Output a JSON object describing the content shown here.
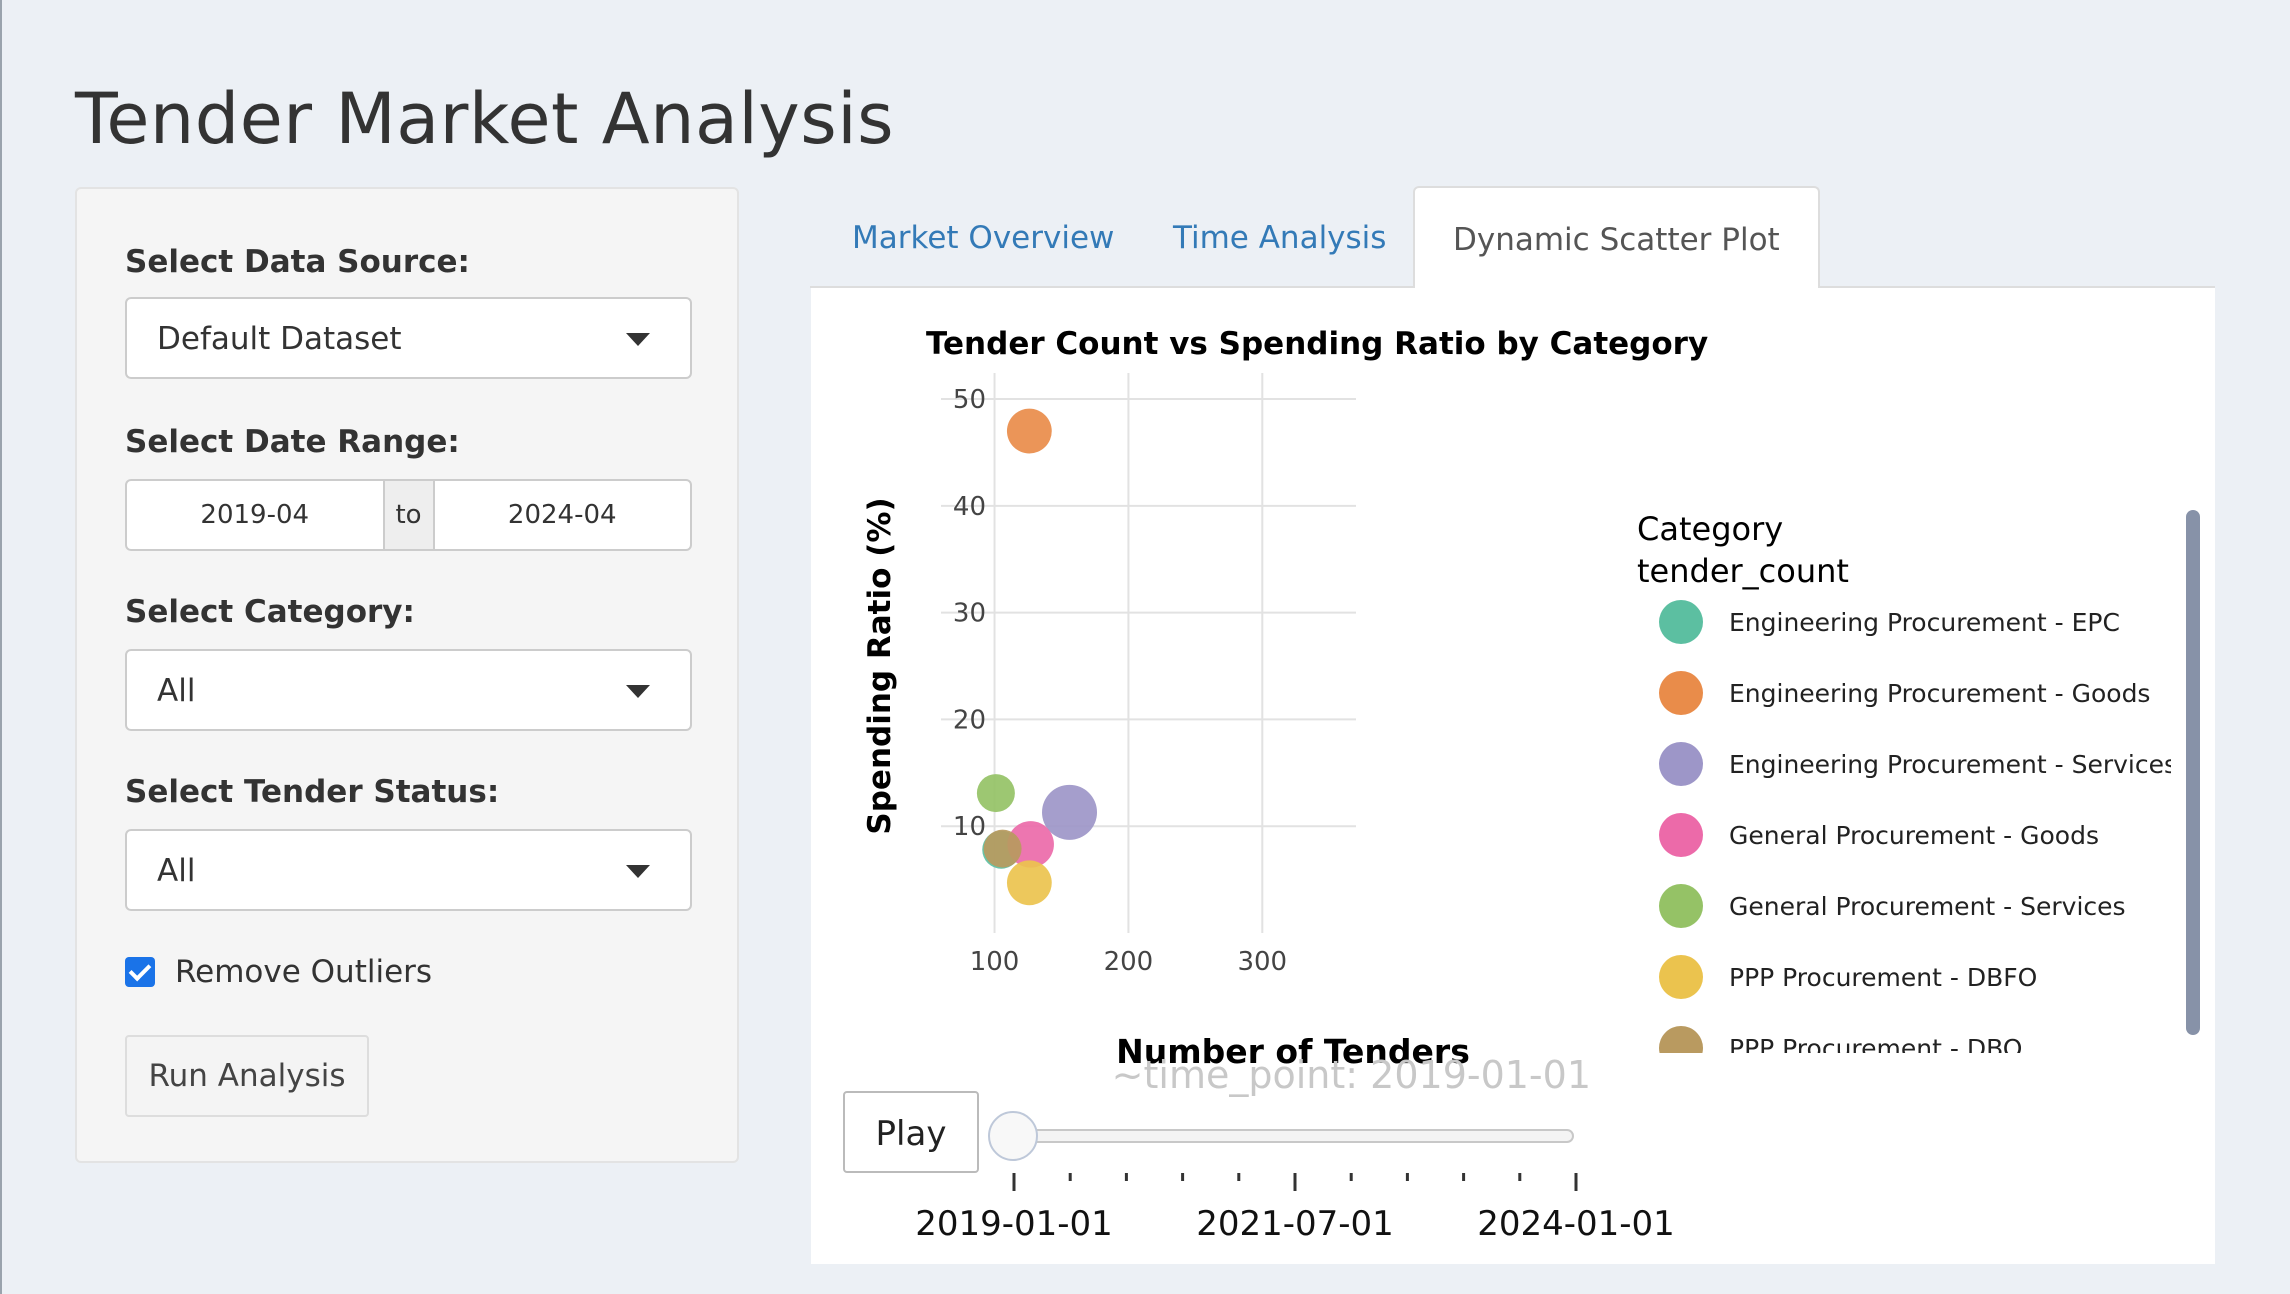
{
  "page": {
    "title": "Tender Market Analysis"
  },
  "sidebar": {
    "data_source": {
      "label": "Select Data Source:",
      "value": "Default Dataset"
    },
    "date_range": {
      "label": "Select Date Range:",
      "start": "2019-04",
      "separator": "to",
      "end": "2024-04"
    },
    "category": {
      "label": "Select Category:",
      "value": "All"
    },
    "status": {
      "label": "Select Tender Status:",
      "value": "All"
    },
    "remove_outliers": {
      "label": "Remove Outliers",
      "checked": true
    },
    "run_button": "Run Analysis"
  },
  "tabs": [
    {
      "label": "Market Overview",
      "active": false
    },
    {
      "label": "Time Analysis",
      "active": false
    },
    {
      "label": "Dynamic Scatter Plot",
      "active": true
    }
  ],
  "animation": {
    "play_label": "Play",
    "current_frame_label": "~time_point: 2019-01-01",
    "slider_position": 0,
    "slider_labels": [
      "2019-01-01",
      "2021-07-01",
      "2024-01-01"
    ]
  },
  "colors": {
    "accent": "#337ab7",
    "checkbox": "#1a73e8"
  },
  "chart_data": {
    "type": "scatter",
    "title": "Tender Count vs Spending Ratio by Category",
    "xlabel": "Number of Tenders",
    "ylabel": "Spending Ratio (%)",
    "xlim": [
      60,
      370
    ],
    "ylim": [
      0,
      51.5
    ],
    "xticks": [
      100,
      200,
      300
    ],
    "yticks": [
      10,
      20,
      30,
      40,
      50
    ],
    "grid": true,
    "legend": {
      "title_lines": [
        "Category",
        "tender_count"
      ],
      "placement": "right"
    },
    "series": [
      {
        "name": "Engineering Procurement - EPC",
        "color": "#5cbfa1",
        "points": [
          {
            "x": 105,
            "y": 7.8,
            "size": 100
          }
        ]
      },
      {
        "name": "Engineering Procurement - Goods",
        "color": "#e98c4a",
        "points": [
          {
            "x": 126,
            "y": 47,
            "size": 120
          }
        ]
      },
      {
        "name": "Engineering Procurement - Services",
        "color": "#9d96c8",
        "points": [
          {
            "x": 156,
            "y": 11.3,
            "size": 150
          }
        ]
      },
      {
        "name": "General Procurement - Goods",
        "color": "#ec6aa9",
        "points": [
          {
            "x": 127,
            "y": 8.3,
            "size": 125
          }
        ]
      },
      {
        "name": "General Procurement - Services",
        "color": "#95c266",
        "points": [
          {
            "x": 101,
            "y": 13.1,
            "size": 100
          }
        ]
      },
      {
        "name": "PPP Procurement - DBFO",
        "color": "#ebc34e",
        "points": [
          {
            "x": 126,
            "y": 4.7,
            "size": 120
          }
        ]
      },
      {
        "name": "PPP Procurement - DBO",
        "color": "#b99a60",
        "points": [
          {
            "x": 106,
            "y": 7.9,
            "size": 100
          }
        ]
      }
    ]
  }
}
